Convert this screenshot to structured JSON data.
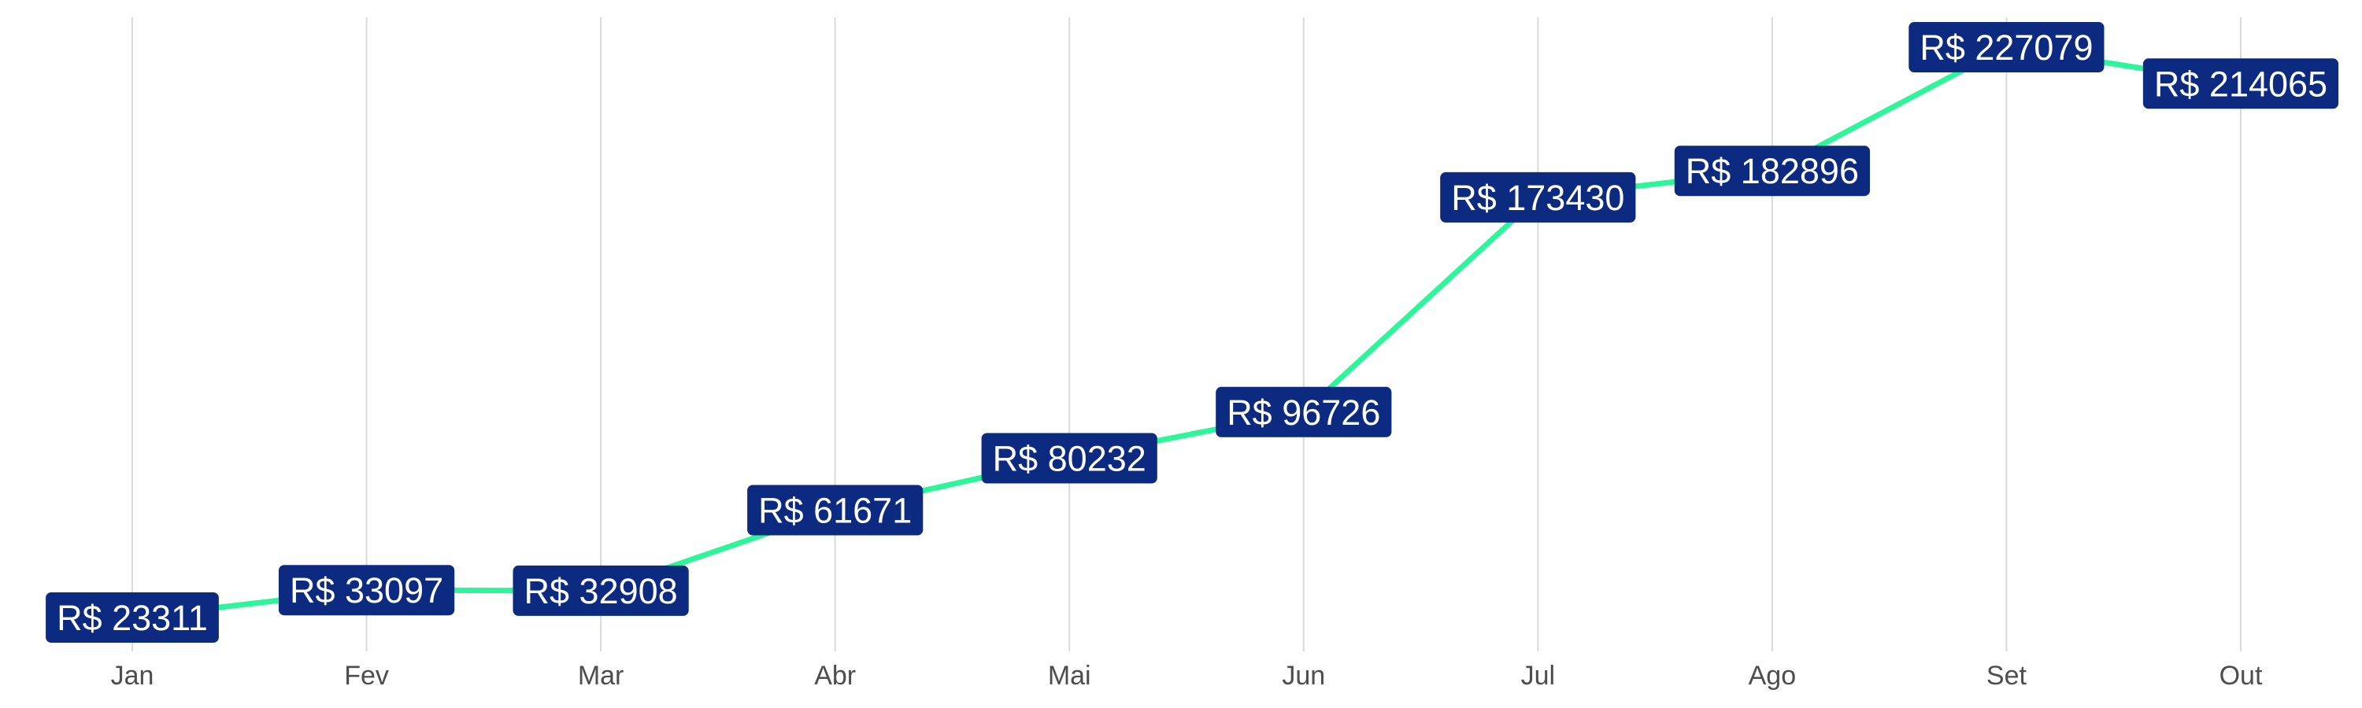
{
  "chart_data": {
    "type": "line",
    "title": "",
    "xlabel": "",
    "ylabel": "",
    "categories": [
      "Jan",
      "Fev",
      "Mar",
      "Abr",
      "Mai",
      "Jun",
      "Jul",
      "Ago",
      "Set",
      "Out"
    ],
    "series": [
      {
        "values": [
          23311,
          33097,
          32908,
          61671,
          80232,
          96726,
          173430,
          182896,
          227079,
          214065
        ]
      }
    ],
    "data_labels": [
      "R$ 23311",
      "R$ 33097",
      "R$ 32908",
      "R$ 61671",
      "R$ 80232",
      "R$ 96726",
      "R$ 173430",
      "R$ 182896",
      "R$ 227079",
      "R$ 214065"
    ],
    "ylim": [
      23311,
      227079
    ],
    "y_axis_shown": false,
    "grid": "vertical",
    "legend": "none"
  },
  "colors": {
    "line": "#2ef59a",
    "label_background": "#0b2a80",
    "label_text": "#ffffff",
    "grid": "#d9d9d9",
    "tick_text": "#4d4d4d",
    "background": "#ffffff"
  }
}
